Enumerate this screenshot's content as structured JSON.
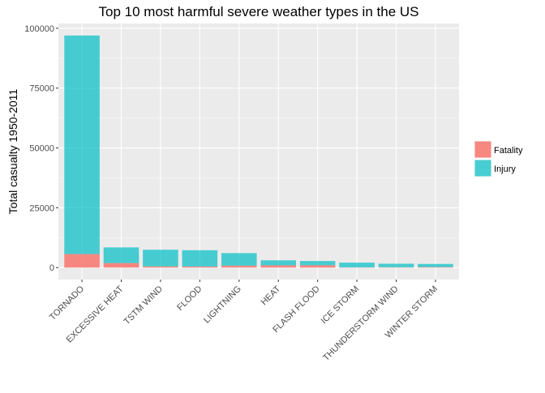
{
  "chart_data": {
    "type": "bar",
    "stacked": true,
    "title": "Top 10 most harmful severe weather types in the US",
    "xlabel": "",
    "ylabel": "Total casualty 1950-2011",
    "ylim": [
      -5000,
      102000
    ],
    "yticks": [
      0,
      25000,
      50000,
      75000,
      100000
    ],
    "ytick_labels": [
      "0",
      "25000",
      "50000",
      "75000",
      "100000"
    ],
    "grid": true,
    "legend_position": "right",
    "categories": [
      "TORNADO",
      "EXCESSIVE HEAT",
      "TSTM WIND",
      "FLOOD",
      "LIGHTNING",
      "HEAT",
      "FLASH FLOOD",
      "ICE STORM",
      "THUNDERSTORM WIND",
      "WINTER STORM"
    ],
    "series": [
      {
        "name": "Fatality",
        "color": "#F8766D",
        "values": [
          5633,
          1903,
          504,
          470,
          816,
          937,
          978,
          89,
          133,
          206
        ]
      },
      {
        "name": "Injury",
        "color": "#00BFC4",
        "values": [
          91346,
          6525,
          6957,
          6789,
          5230,
          2100,
          1777,
          1975,
          1488,
          1321
        ]
      }
    ]
  }
}
